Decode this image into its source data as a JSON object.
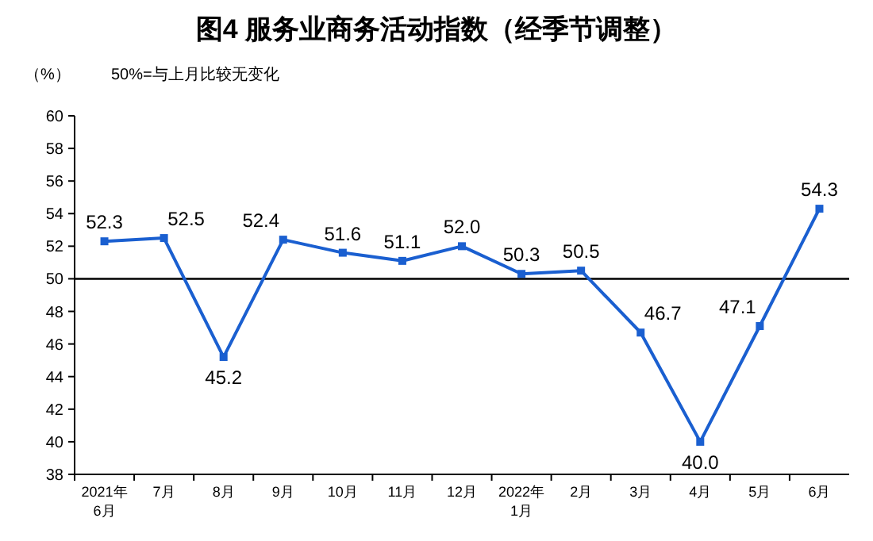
{
  "chart_data": {
    "type": "line",
    "title": "图4  服务业商务活动指数（经季节调整）",
    "ylabel": "（%）",
    "annotations": [
      "50%=与上月比较无变化"
    ],
    "categories": [
      "2021年\n6月",
      "7月",
      "8月",
      "9月",
      "10月",
      "11月",
      "12月",
      "2022年\n1月",
      "2月",
      "3月",
      "4月",
      "5月",
      "6月"
    ],
    "series": [
      {
        "color": "#1a5fd0",
        "values": [
          52.3,
          52.5,
          45.2,
          52.4,
          51.6,
          51.1,
          52.0,
          50.3,
          50.5,
          46.7,
          40.0,
          47.1,
          54.3
        ],
        "value_labels": [
          "52.3",
          "52.5",
          "45.2",
          "52.4",
          "51.6",
          "51.1",
          "52.0",
          "50.3",
          "50.5",
          "46.7",
          "40.0",
          "47.1",
          "54.3"
        ]
      }
    ],
    "ylim": [
      38,
      60
    ],
    "yticks": [
      38,
      40,
      42,
      44,
      46,
      48,
      50,
      52,
      54,
      56,
      58,
      60
    ],
    "ref_lines": [
      {
        "axis": "y",
        "value": 50,
        "color": "#000000"
      }
    ],
    "marker": "square",
    "line_style": "solid"
  }
}
